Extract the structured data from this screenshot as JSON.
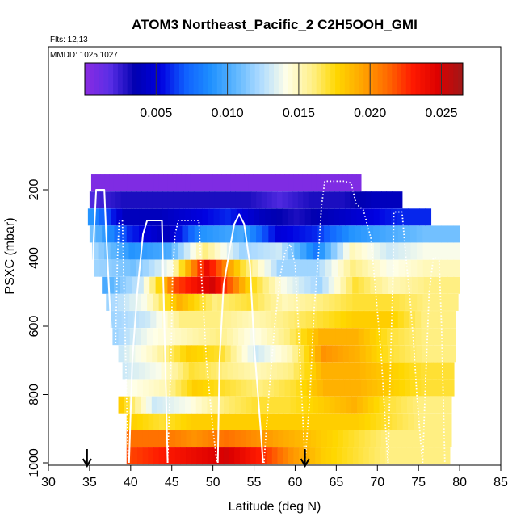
{
  "header": {
    "title": "ATOM3 Northeast_Pacific_2 C2H5OOH_GMI",
    "flights": "Flts: 12,13",
    "mmdd": "MMDD: 1025,1027"
  },
  "chart_data": {
    "type": "heatmap",
    "title": "ATOM3 Northeast_Pacific_2 C2H5OOH_GMI",
    "xlabel": "Latitude (deg N)",
    "ylabel": "PSXC (mbar)",
    "xlim": [
      30,
      85
    ],
    "ylim": [
      1000,
      0
    ],
    "x_ticks": [
      "30",
      "35",
      "40",
      "45",
      "50",
      "55",
      "60",
      "65",
      "70",
      "75",
      "80",
      "85"
    ],
    "y_ticks": [
      "200",
      "400",
      "600",
      "800",
      "1000"
    ],
    "colorbar": {
      "range": [
        0,
        0.0265
      ],
      "ticks": [
        0.005,
        0.01,
        0.015,
        0.02,
        0.025
      ],
      "tick_labels": [
        "0.005",
        "0.010",
        "0.015",
        "0.020",
        "0.025"
      ],
      "colors": [
        "#8a2be2",
        "#5a2ee6",
        "#0000b0",
        "#0000e0",
        "#1060ff",
        "#1e90ff",
        "#60b8ff",
        "#b0dcff",
        "#ffffe8",
        "#fff08a",
        "#ffd700",
        "#ffa500",
        "#ff6a00",
        "#ff1a00",
        "#dd0000",
        "#a01818"
      ]
    },
    "arrows_lat": [
      34.7,
      61.2
    ],
    "pressure_levels": [
      180,
      230,
      280,
      330,
      380,
      430,
      480,
      530,
      580,
      630,
      680,
      730,
      780,
      830,
      880,
      930,
      980
    ],
    "level_lat_ranges": [
      [
        35.2,
        68.0
      ],
      [
        35.0,
        73.0
      ],
      [
        34.8,
        76.5
      ],
      [
        35.0,
        80.0
      ],
      [
        35.3,
        80.0
      ],
      [
        35.5,
        80.0
      ],
      [
        36.5,
        80.0
      ],
      [
        37.0,
        79.8
      ],
      [
        37.5,
        79.5
      ],
      [
        37.8,
        79.5
      ],
      [
        38.5,
        79.5
      ],
      [
        39.0,
        79.3
      ],
      [
        39.5,
        79.3
      ],
      [
        38.5,
        79.0
      ],
      [
        39.5,
        79.0
      ],
      [
        39.5,
        79.0
      ],
      [
        39.5,
        78.8
      ]
    ],
    "values": [
      [
        0.0004,
        0.0004,
        0.0004,
        0.0004,
        0.0004,
        0.0004,
        0.0004,
        0.0004,
        0.0004,
        0.0004
      ],
      [
        0.002,
        0.003,
        0.003,
        0.003,
        0.003,
        0.003,
        0.002,
        0.003,
        0.003,
        0.004
      ],
      [
        0.009,
        0.004,
        0.004,
        0.005,
        0.006,
        0.004,
        0.003,
        0.004,
        0.005,
        0.006
      ],
      [
        0.011,
        0.006,
        0.004,
        0.009,
        0.01,
        0.005,
        0.006,
        0.009,
        0.01,
        0.011
      ],
      [
        0.012,
        0.009,
        0.01,
        0.016,
        0.012,
        0.013,
        0.008,
        0.015,
        0.013,
        0.014
      ],
      [
        0.012,
        0.011,
        0.014,
        0.024,
        0.017,
        0.012,
        0.012,
        0.016,
        0.014,
        0.015
      ],
      [
        0.01,
        0.013,
        0.022,
        0.025,
        0.018,
        0.014,
        0.012,
        0.017,
        0.015,
        0.016
      ],
      [
        0.012,
        0.014,
        0.019,
        0.016,
        0.017,
        0.015,
        0.016,
        0.017,
        0.017,
        0.016
      ],
      [
        0.012,
        0.013,
        0.016,
        0.016,
        0.015,
        0.016,
        0.017,
        0.018,
        0.018,
        0.016
      ],
      [
        0.012,
        0.014,
        0.015,
        0.016,
        0.014,
        0.016,
        0.019,
        0.019,
        0.017,
        0.016
      ],
      [
        0.013,
        0.015,
        0.018,
        0.017,
        0.013,
        0.015,
        0.02,
        0.019,
        0.017,
        0.016
      ],
      [
        0.013,
        0.014,
        0.017,
        0.016,
        0.015,
        0.016,
        0.019,
        0.019,
        0.018,
        0.017
      ],
      [
        0.014,
        0.015,
        0.018,
        0.017,
        0.016,
        0.017,
        0.019,
        0.019,
        0.018,
        0.017
      ],
      [
        0.018,
        0.013,
        0.014,
        0.016,
        0.017,
        0.017,
        0.018,
        0.019,
        0.017,
        0.016
      ],
      [
        0.018,
        0.017,
        0.018,
        0.018,
        0.018,
        0.018,
        0.018,
        0.018,
        0.017,
        0.016
      ],
      [
        0.021,
        0.021,
        0.02,
        0.021,
        0.02,
        0.019,
        0.018,
        0.017,
        0.016,
        0.016
      ],
      [
        0.022,
        0.023,
        0.024,
        0.025,
        0.023,
        0.02,
        0.018,
        0.017,
        0.016,
        0.016
      ]
    ],
    "flight_tracks": [
      {
        "style": "solid",
        "points": [
          [
            35.0,
            1000
          ],
          [
            35.2,
            600
          ],
          [
            35.5,
            350
          ],
          [
            35.8,
            200
          ],
          [
            36.8,
            200
          ],
          [
            37.0,
            320
          ],
          [
            37.6,
            600
          ],
          [
            37.8,
            900
          ],
          [
            38.0,
            1000
          ]
        ]
      },
      {
        "style": "dotted",
        "points": [
          [
            38.0,
            1000
          ],
          [
            38.2,
            600
          ],
          [
            38.4,
            400
          ],
          [
            38.6,
            290
          ],
          [
            39.0,
            290
          ],
          [
            39.2,
            500
          ],
          [
            39.5,
            800
          ],
          [
            39.7,
            1000
          ]
        ]
      },
      {
        "style": "solid",
        "points": [
          [
            39.8,
            1000
          ],
          [
            40.2,
            700
          ],
          [
            40.8,
            500
          ],
          [
            41.5,
            330
          ],
          [
            42.0,
            290
          ],
          [
            43.8,
            290
          ],
          [
            44.0,
            500
          ],
          [
            44.3,
            800
          ],
          [
            44.5,
            1000
          ]
        ]
      },
      {
        "style": "dotted",
        "points": [
          [
            44.5,
            1000
          ],
          [
            44.9,
            700
          ],
          [
            45.1,
            450
          ],
          [
            45.4,
            330
          ],
          [
            45.8,
            290
          ],
          [
            48.3,
            290
          ],
          [
            48.6,
            450
          ],
          [
            49.2,
            700
          ],
          [
            50.0,
            900
          ],
          [
            50.5,
            1000
          ]
        ]
      },
      {
        "style": "solid",
        "points": [
          [
            50.6,
            1000
          ],
          [
            50.8,
            700
          ],
          [
            51.3,
            480
          ],
          [
            52.0,
            380
          ],
          [
            52.6,
            300
          ],
          [
            53.2,
            272
          ],
          [
            53.8,
            300
          ],
          [
            54.5,
            420
          ],
          [
            55.0,
            650
          ],
          [
            55.8,
            900
          ],
          [
            56.1,
            1000
          ]
        ]
      },
      {
        "style": "dotted",
        "points": [
          [
            56.2,
            1000
          ],
          [
            56.8,
            800
          ],
          [
            57.5,
            600
          ],
          [
            58.2,
            450
          ],
          [
            58.8,
            380
          ],
          [
            59.4,
            360
          ],
          [
            60.0,
            420
          ],
          [
            60.5,
            650
          ],
          [
            61.0,
            900
          ],
          [
            61.2,
            1000
          ]
        ]
      },
      {
        "style": "dotted",
        "points": [
          [
            61.2,
            1000
          ],
          [
            61.8,
            800
          ],
          [
            62.3,
            550
          ],
          [
            62.8,
            400
          ],
          [
            63.2,
            250
          ],
          [
            63.6,
            175
          ],
          [
            66.0,
            175
          ],
          [
            66.8,
            180
          ],
          [
            67.4,
            240
          ],
          [
            68.3,
            260
          ],
          [
            69.2,
            340
          ],
          [
            69.8,
            500
          ],
          [
            70.5,
            700
          ],
          [
            71.0,
            900
          ],
          [
            71.3,
            1000
          ]
        ]
      },
      {
        "style": "dotted",
        "points": [
          [
            71.3,
            1000
          ],
          [
            71.6,
            700
          ],
          [
            71.9,
            450
          ],
          [
            72.0,
            265
          ],
          [
            73.0,
            265
          ],
          [
            73.4,
            380
          ],
          [
            73.9,
            500
          ],
          [
            74.4,
            650
          ],
          [
            74.8,
            800
          ],
          [
            75.3,
            950
          ],
          [
            75.5,
            1000
          ]
        ]
      },
      {
        "style": "dotted",
        "points": [
          [
            75.5,
            1000
          ],
          [
            75.8,
            800
          ],
          [
            76.3,
            500
          ],
          [
            76.8,
            400
          ],
          [
            77.5,
            400
          ],
          [
            77.8,
            600
          ],
          [
            78.0,
            800
          ],
          [
            78.2,
            1000
          ]
        ]
      }
    ]
  }
}
